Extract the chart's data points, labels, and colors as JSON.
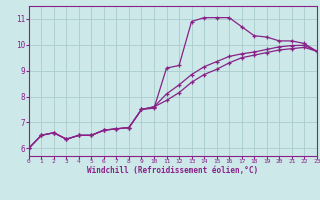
{
  "xlabel": "Windchill (Refroidissement éolien,°C)",
  "background_color": "#cce8e8",
  "line_color": "#882288",
  "grid_color": "#aacccc",
  "xlim": [
    0,
    23
  ],
  "ylim": [
    5.7,
    11.5
  ],
  "xticks": [
    0,
    1,
    2,
    3,
    4,
    5,
    6,
    7,
    8,
    9,
    10,
    11,
    12,
    13,
    14,
    15,
    16,
    17,
    18,
    19,
    20,
    21,
    22,
    23
  ],
  "yticks": [
    6,
    7,
    8,
    9,
    10,
    11
  ],
  "curve1_x": [
    0,
    1,
    2,
    3,
    4,
    5,
    6,
    7,
    8,
    9,
    10,
    11,
    12,
    13,
    14,
    15,
    16,
    17,
    18,
    19,
    20,
    21,
    22,
    23
  ],
  "curve1_y": [
    6.0,
    6.5,
    6.6,
    6.35,
    6.5,
    6.5,
    6.7,
    6.75,
    6.8,
    7.5,
    7.55,
    9.1,
    9.2,
    10.9,
    11.05,
    11.05,
    11.05,
    10.7,
    10.35,
    10.3,
    10.15,
    10.15,
    10.05,
    9.75
  ],
  "curve2_x": [
    0,
    1,
    2,
    3,
    4,
    5,
    6,
    7,
    8,
    9,
    10,
    11,
    12,
    13,
    14,
    15,
    16,
    17,
    18,
    19,
    20,
    21,
    22,
    23
  ],
  "curve2_y": [
    6.0,
    6.5,
    6.6,
    6.35,
    6.5,
    6.5,
    6.7,
    6.75,
    6.8,
    7.5,
    7.6,
    8.1,
    8.45,
    8.85,
    9.15,
    9.35,
    9.55,
    9.65,
    9.72,
    9.82,
    9.92,
    9.97,
    9.98,
    9.75
  ],
  "curve3_x": [
    0,
    1,
    2,
    3,
    4,
    5,
    6,
    7,
    8,
    9,
    10,
    11,
    12,
    13,
    14,
    15,
    16,
    17,
    18,
    19,
    20,
    21,
    22,
    23
  ],
  "curve3_y": [
    6.0,
    6.5,
    6.6,
    6.35,
    6.5,
    6.5,
    6.7,
    6.75,
    6.8,
    7.5,
    7.6,
    7.85,
    8.15,
    8.55,
    8.85,
    9.05,
    9.3,
    9.5,
    9.6,
    9.7,
    9.8,
    9.85,
    9.9,
    9.75
  ]
}
